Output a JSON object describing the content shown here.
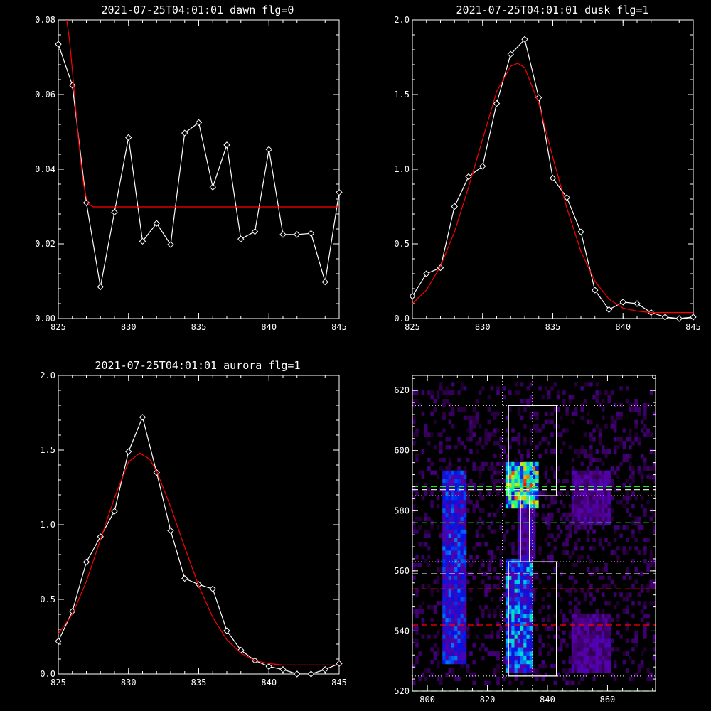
{
  "chart_data": [
    {
      "type": "line",
      "title": "2021-07-25T04:01:01 dawn flg=0",
      "xlim": [
        825,
        845
      ],
      "ylim": [
        0.0,
        0.08
      ],
      "xticks": [
        "825",
        "830",
        "835",
        "840",
        "845"
      ],
      "yticks": [
        "0.00",
        "0.02",
        "0.04",
        "0.06",
        "0.08"
      ],
      "series": [
        {
          "color": "#ffffff",
          "marker": "diamond",
          "x": [
            825,
            826,
            827,
            828,
            829,
            830,
            831,
            832,
            833,
            834,
            835,
            836,
            837,
            838,
            839,
            840,
            841,
            842,
            843,
            844,
            845
          ],
          "values": [
            0.0735,
            0.0625,
            0.031,
            0.0085,
            0.0285,
            0.0485,
            0.0207,
            0.0255,
            0.0198,
            0.0497,
            0.0525,
            0.0352,
            0.0465,
            0.0213,
            0.0233,
            0.0453,
            0.0225,
            0.0225,
            0.0228,
            0.0098,
            0.0338
          ]
        },
        {
          "color": "#ff0000",
          "marker": "none",
          "x": [
            825.6,
            825.8,
            826.0,
            826.2,
            826.4,
            826.6,
            826.8,
            827.0,
            827.2,
            827.5,
            845
          ],
          "values": [
            0.08,
            0.0745,
            0.0665,
            0.058,
            0.0495,
            0.042,
            0.036,
            0.0322,
            0.0305,
            0.0299,
            0.0299
          ]
        }
      ]
    },
    {
      "type": "line",
      "title": "2021-07-25T04:01:01 dusk flg=1",
      "xlim": [
        825,
        845
      ],
      "ylim": [
        0.0,
        2.0
      ],
      "xticks": [
        "825",
        "830",
        "835",
        "840",
        "845"
      ],
      "yticks": [
        "0.0",
        "0.5",
        "1.0",
        "1.5",
        "2.0"
      ],
      "series": [
        {
          "color": "#ffffff",
          "marker": "diamond",
          "x": [
            825,
            826,
            827,
            828,
            829,
            830,
            831,
            832,
            833,
            834,
            835,
            836,
            837,
            838,
            839,
            840,
            841,
            842,
            843,
            844,
            845
          ],
          "values": [
            0.15,
            0.3,
            0.34,
            0.75,
            0.95,
            1.02,
            1.44,
            1.77,
            1.87,
            1.48,
            0.94,
            0.81,
            0.58,
            0.19,
            0.06,
            0.11,
            0.1,
            0.04,
            0.01,
            0.0,
            0.01
          ]
        },
        {
          "color": "#ff0000",
          "marker": "none",
          "x": [
            825,
            826,
            827,
            828,
            829,
            830,
            831,
            832,
            832.5,
            833,
            834,
            835,
            836,
            837,
            838,
            839,
            840,
            841,
            842,
            843,
            844,
            845
          ],
          "values": [
            0.1,
            0.19,
            0.35,
            0.58,
            0.88,
            1.2,
            1.52,
            1.69,
            1.71,
            1.68,
            1.44,
            1.08,
            0.74,
            0.45,
            0.25,
            0.13,
            0.07,
            0.05,
            0.04,
            0.04,
            0.04,
            0.04
          ]
        }
      ]
    },
    {
      "type": "line",
      "title": "2021-07-25T04:01:01 aurora flg=1",
      "xlim": [
        825,
        845
      ],
      "ylim": [
        0.0,
        2.0
      ],
      "xticks": [
        "825",
        "830",
        "835",
        "840",
        "845"
      ],
      "yticks": [
        "0.0",
        "0.5",
        "1.0",
        "1.5",
        "2.0"
      ],
      "series": [
        {
          "color": "#ffffff",
          "marker": "diamond",
          "x": [
            825,
            826,
            827,
            828,
            829,
            830,
            831,
            832,
            833,
            834,
            835,
            836,
            837,
            838,
            839,
            840,
            841,
            842,
            843,
            844,
            845
          ],
          "values": [
            0.22,
            0.42,
            0.75,
            0.92,
            1.09,
            1.49,
            1.72,
            1.35,
            0.96,
            0.64,
            0.6,
            0.57,
            0.29,
            0.16,
            0.09,
            0.05,
            0.03,
            0.0,
            0.0,
            0.03,
            0.07
          ]
        },
        {
          "color": "#ff0000",
          "marker": "none",
          "x": [
            825,
            826,
            827,
            828,
            829,
            830,
            830.8,
            831.5,
            832,
            833,
            834,
            835,
            836,
            837,
            838,
            839,
            840,
            841,
            842,
            843,
            844,
            845
          ],
          "values": [
            0.27,
            0.4,
            0.62,
            0.9,
            1.18,
            1.42,
            1.48,
            1.44,
            1.36,
            1.12,
            0.85,
            0.59,
            0.38,
            0.23,
            0.14,
            0.09,
            0.07,
            0.06,
            0.06,
            0.06,
            0.06,
            0.06
          ]
        }
      ]
    },
    {
      "type": "heatmap",
      "xlim": [
        795,
        876
      ],
      "ylim": [
        520,
        625
      ],
      "xticks": [
        "800",
        "820",
        "840",
        "860"
      ],
      "yticks": [
        "520",
        "540",
        "560",
        "580",
        "600",
        "620"
      ],
      "bands": [
        {
          "x0": 805,
          "x1": 812,
          "y0": 528,
          "y1": 592,
          "peak": 0.55
        },
        {
          "x0": 826,
          "x1": 834,
          "y0": 525,
          "y1": 563,
          "peak": 0.7
        },
        {
          "x0": 826,
          "x1": 836,
          "y0": 580,
          "y1": 596,
          "peak": 1.0
        },
        {
          "x0": 830,
          "x1": 835,
          "y0": 563,
          "y1": 580,
          "peak": 0.35
        },
        {
          "x0": 848,
          "x1": 860,
          "y0": 575,
          "y1": 592,
          "peak": 0.3
        },
        {
          "x0": 848,
          "x1": 860,
          "y0": 525,
          "y1": 545,
          "peak": 0.3
        }
      ],
      "boxes": [
        {
          "x0": 827,
          "x1": 843,
          "y0": 585,
          "y1": 615
        },
        {
          "x0": 831,
          "x1": 834,
          "y0": 563,
          "y1": 585
        },
        {
          "x0": 827,
          "x1": 843,
          "y0": 525,
          "y1": 563
        }
      ],
      "vlines_dotted": [
        825,
        835
      ],
      "hlines_dotted": [
        615,
        585,
        563,
        525
      ],
      "hlines_dashed": [
        {
          "y": 588,
          "color": "#00ff00"
        },
        {
          "y": 587,
          "color": "#ffffff"
        },
        {
          "y": 576,
          "color": "#00ff00"
        },
        {
          "y": 559,
          "color": "#ffffff"
        },
        {
          "y": 554,
          "color": "#ff0000"
        },
        {
          "y": 542,
          "color": "#ff0000"
        },
        {
          "y": 520,
          "color": "#00ff00"
        }
      ]
    }
  ]
}
